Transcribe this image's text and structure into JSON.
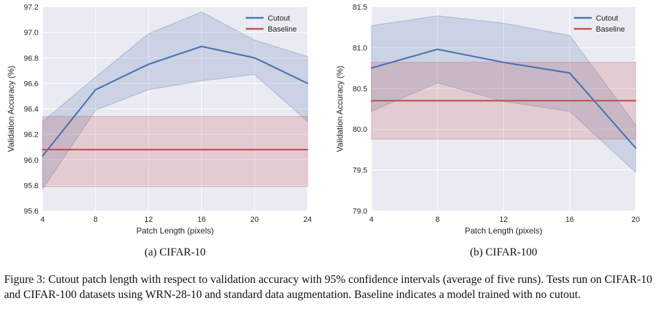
{
  "chart_data": [
    {
      "type": "line",
      "subcaption": "(a) CIFAR-10",
      "xlabel": "Patch Length (pixels)",
      "ylabel": "Validation Accuracy (%)",
      "x": [
        4,
        8,
        12,
        16,
        20,
        24
      ],
      "xticks": [
        "4",
        "8",
        "12",
        "16",
        "20",
        "24"
      ],
      "xlim": [
        4,
        24
      ],
      "ylim": [
        95.6,
        97.2
      ],
      "yticks": [
        "95.6",
        "95.8",
        "96.0",
        "96.2",
        "96.4",
        "96.6",
        "96.8",
        "97.0",
        "97.2"
      ],
      "grid": true,
      "legend_position": "top-right",
      "series": [
        {
          "name": "Cutout",
          "color": "#4c72b0",
          "values": [
            96.03,
            96.55,
            96.75,
            96.89,
            96.8,
            96.6
          ],
          "ci_upper": [
            96.3,
            96.65,
            96.99,
            97.16,
            96.94,
            96.81
          ],
          "ci_lower": [
            95.77,
            96.39,
            96.55,
            96.62,
            96.67,
            96.3
          ]
        },
        {
          "name": "Baseline",
          "color": "#c44e52",
          "values": [
            96.08,
            96.08,
            96.08,
            96.08,
            96.08,
            96.08
          ],
          "ci_upper": [
            96.34,
            96.34,
            96.34,
            96.34,
            96.34,
            96.34
          ],
          "ci_lower": [
            95.79,
            95.79,
            95.79,
            95.79,
            95.79,
            95.79
          ]
        }
      ]
    },
    {
      "type": "line",
      "subcaption": "(b) CIFAR-100",
      "xlabel": "Patch Length (pixels)",
      "ylabel": "Validation Accuracy (%)",
      "x": [
        4,
        8,
        12,
        16,
        20
      ],
      "xticks": [
        "4",
        "8",
        "12",
        "16",
        "20"
      ],
      "xlim": [
        4,
        20
      ],
      "ylim": [
        79.0,
        81.5
      ],
      "yticks": [
        "79.0",
        "79.5",
        "80.0",
        "80.5",
        "81.0",
        "81.5"
      ],
      "grid": true,
      "legend_position": "top-right",
      "series": [
        {
          "name": "Cutout",
          "color": "#4c72b0",
          "values": [
            80.75,
            80.98,
            80.82,
            80.69,
            79.77
          ],
          "ci_upper": [
            81.27,
            81.39,
            81.3,
            81.15,
            80.05
          ],
          "ci_lower": [
            80.22,
            80.57,
            80.34,
            80.22,
            79.47
          ]
        },
        {
          "name": "Baseline",
          "color": "#c44e52",
          "values": [
            80.35,
            80.35,
            80.35,
            80.35,
            80.35
          ],
          "ci_upper": [
            80.82,
            80.82,
            80.82,
            80.82,
            80.82
          ],
          "ci_lower": [
            79.88,
            79.88,
            79.88,
            79.88,
            79.88
          ]
        }
      ]
    }
  ],
  "caption": "Figure 3: Cutout patch length with respect to validation accuracy with 95% confidence intervals (average of five runs). Tests run on CIFAR-10 and CIFAR-100 datasets using WRN-28-10 and standard data augmentation. Baseline indicates a model trained with no cutout."
}
